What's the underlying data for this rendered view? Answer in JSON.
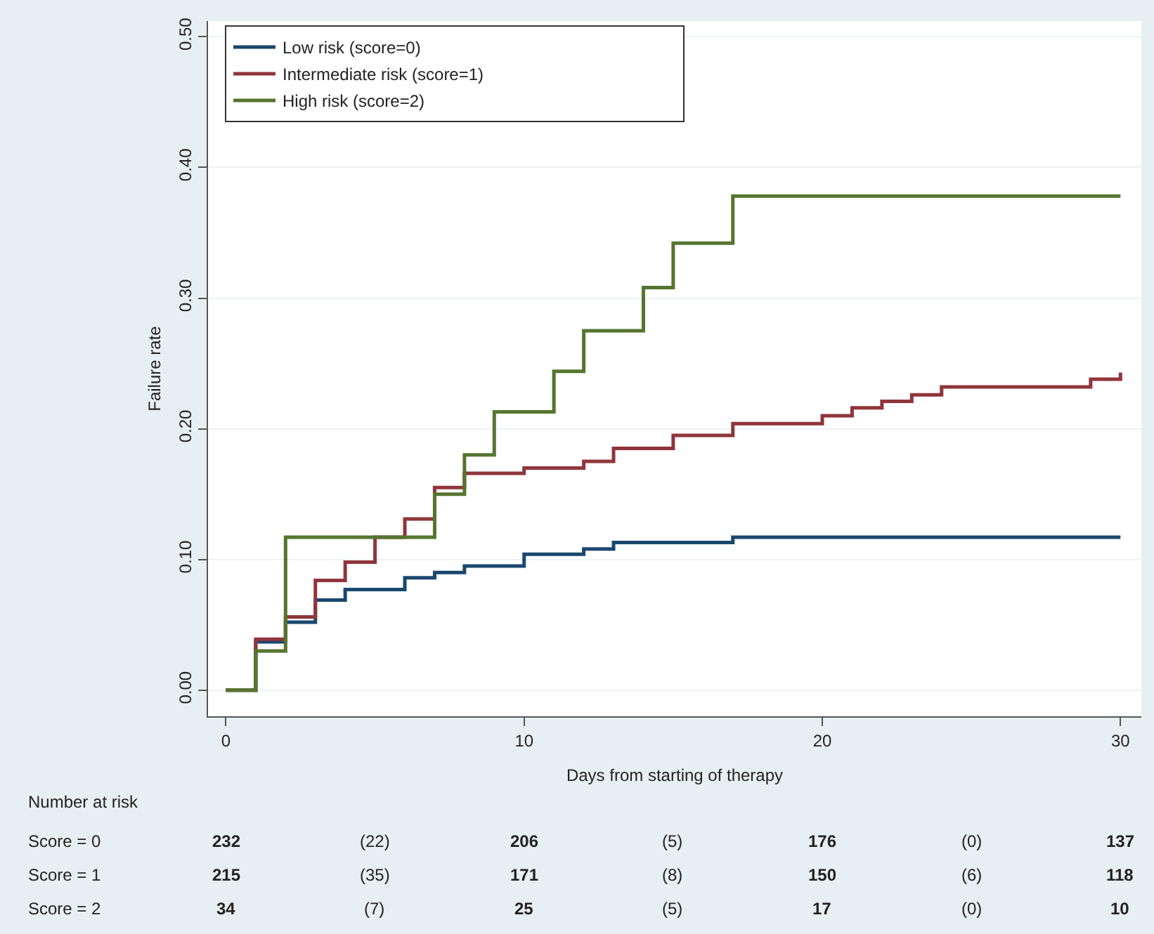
{
  "chart_data": {
    "type": "step",
    "xlabel": "Days from starting of therapy",
    "ylabel": "Failure rate",
    "xlim": [
      -0.6,
      30.7
    ],
    "ylim": [
      -0.02,
      0.512
    ],
    "xticks": [
      0,
      10,
      20,
      30
    ],
    "yticks": [
      {
        "value": 0,
        "label": "0.00"
      },
      {
        "value": 0.1,
        "label": "0.10"
      },
      {
        "value": 0.2,
        "label": "0.20"
      },
      {
        "value": 0.3,
        "label": "0.30"
      },
      {
        "value": 0.4,
        "label": "0.40"
      },
      {
        "value": 0.5,
        "label": "0.50"
      }
    ],
    "grid": "y",
    "legend": "top",
    "line_style": "solid",
    "marker": "none",
    "series": [
      {
        "name": "Low risk (score=0)",
        "color": "#1a476f",
        "x": [
          0,
          1,
          2,
          3,
          4,
          6,
          7,
          8,
          10,
          12,
          13,
          17,
          30
        ],
        "values": [
          0,
          0.037,
          0.052,
          0.069,
          0.077,
          0.086,
          0.09,
          0.095,
          0.104,
          0.108,
          0.113,
          0.117,
          0.117
        ]
      },
      {
        "name": "Intermediate risk (score=1)",
        "color": "#90353b",
        "x": [
          0,
          1,
          2,
          3,
          4,
          5,
          6,
          7,
          8,
          10,
          12,
          13,
          15,
          17,
          20,
          21,
          22,
          23,
          24,
          29,
          30
        ],
        "values": [
          0,
          0.039,
          0.056,
          0.084,
          0.098,
          0.117,
          0.131,
          0.155,
          0.166,
          0.17,
          0.175,
          0.185,
          0.195,
          0.204,
          0.21,
          0.216,
          0.221,
          0.226,
          0.232,
          0.238,
          0.243
        ]
      },
      {
        "name": "High risk (score=2)",
        "color": "#55752f",
        "x": [
          0,
          1,
          2,
          7,
          8,
          9,
          11,
          12,
          14,
          15,
          17,
          30
        ],
        "values": [
          0,
          0.03,
          0.117,
          0.15,
          0.18,
          0.213,
          0.244,
          0.275,
          0.308,
          0.342,
          0.378,
          0.378
        ]
      }
    ],
    "annotations": [
      "Number at risk",
      "Score = 0",
      "232",
      "(22)",
      "206",
      "(5)",
      "176",
      "(0)",
      "137",
      "Score = 1",
      "215",
      "(35)",
      "171",
      "(8)",
      "150",
      "(6)",
      "118",
      "Score = 2",
      "34",
      "(7)",
      "25",
      "(5)",
      "17",
      "(0)",
      "10"
    ]
  }
}
